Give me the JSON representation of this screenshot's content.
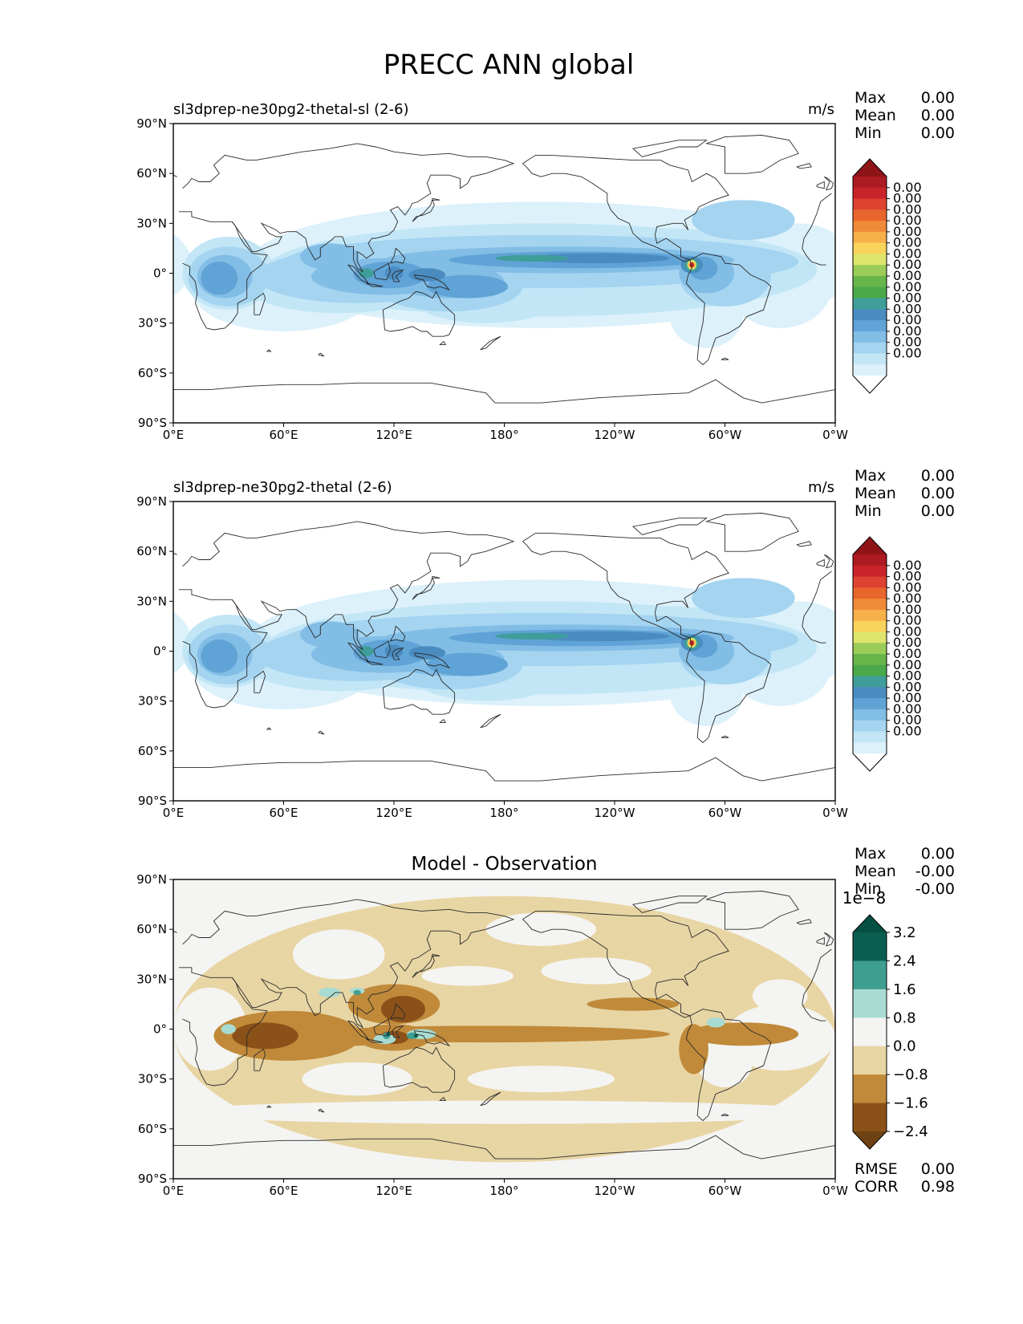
{
  "figure": {
    "title": "PRECC ANN global"
  },
  "chart_data": [
    {
      "type": "heatmap",
      "title": "sl3dprep-ne30pg2-thetal-sl (2-6)",
      "units": "m/s",
      "stats": [
        {
          "label": "Max",
          "value": "0.00"
        },
        {
          "label": "Mean",
          "value": "0.00"
        },
        {
          "label": "Min",
          "value": "0.00"
        }
      ],
      "x_ticks": [
        "0°E",
        "60°E",
        "120°E",
        "180°",
        "120°W",
        "60°W",
        "0°W"
      ],
      "y_ticks": [
        "90°N",
        "60°N",
        "30°N",
        "0°",
        "30°S",
        "60°S",
        "90°S"
      ],
      "xlim": [
        0,
        360
      ],
      "ylim": [
        -90,
        90
      ],
      "colorbar": {
        "colors": [
          "#ffffff",
          "#dcf1fa",
          "#c2e6f6",
          "#a4d4f0",
          "#82bde6",
          "#60a3d6",
          "#4b8cc0",
          "#3f9e9a",
          "#4aa84a",
          "#68b64a",
          "#9ccc58",
          "#dde56c",
          "#f9d35c",
          "#f7b04a",
          "#ef8a38",
          "#e8652c",
          "#de4230",
          "#c8242a",
          "#ac1a22",
          "#8f1418"
        ],
        "labels": [
          "0.00",
          "0.00",
          "0.00",
          "0.00",
          "0.00",
          "0.00",
          "0.00",
          "0.00",
          "0.00",
          "0.00",
          "0.00",
          "0.00",
          "0.00",
          "0.00",
          "0.00",
          "0.00"
        ]
      }
    },
    {
      "type": "heatmap",
      "title": "sl3dprep-ne30pg2-thetal (2-6)",
      "units": "m/s",
      "stats": [
        {
          "label": "Max",
          "value": "0.00"
        },
        {
          "label": "Mean",
          "value": "0.00"
        },
        {
          "label": "Min",
          "value": "0.00"
        }
      ],
      "x_ticks": [
        "0°E",
        "60°E",
        "120°E",
        "180°",
        "120°W",
        "60°W",
        "0°W"
      ],
      "y_ticks": [
        "90°N",
        "60°N",
        "30°N",
        "0°",
        "30°S",
        "60°S",
        "90°S"
      ],
      "xlim": [
        0,
        360
      ],
      "ylim": [
        -90,
        90
      ],
      "colorbar": {
        "colors": [
          "#ffffff",
          "#dcf1fa",
          "#c2e6f6",
          "#a4d4f0",
          "#82bde6",
          "#60a3d6",
          "#4b8cc0",
          "#3f9e9a",
          "#4aa84a",
          "#68b64a",
          "#9ccc58",
          "#dde56c",
          "#f9d35c",
          "#f7b04a",
          "#ef8a38",
          "#e8652c",
          "#de4230",
          "#c8242a",
          "#ac1a22",
          "#8f1418"
        ],
        "labels": [
          "0.00",
          "0.00",
          "0.00",
          "0.00",
          "0.00",
          "0.00",
          "0.00",
          "0.00",
          "0.00",
          "0.00",
          "0.00",
          "0.00",
          "0.00",
          "0.00",
          "0.00",
          "0.00"
        ]
      }
    },
    {
      "type": "heatmap",
      "title": "Model - Observation",
      "units": "",
      "stats": [
        {
          "label": "Max",
          "value": "0.00"
        },
        {
          "label": "Mean",
          "value": "-0.00"
        },
        {
          "label": "Min",
          "value": "-0.00"
        }
      ],
      "footer_stats": [
        {
          "label": "RMSE",
          "value": "0.00"
        },
        {
          "label": "CORR",
          "value": "0.98"
        }
      ],
      "x_ticks": [
        "0°E",
        "60°E",
        "120°E",
        "180°",
        "120°W",
        "60°W",
        "0°W"
      ],
      "y_ticks": [
        "90°N",
        "60°N",
        "30°N",
        "0°",
        "30°S",
        "60°S",
        "90°S"
      ],
      "xlim": [
        0,
        360
      ],
      "ylim": [
        -90,
        90
      ],
      "colorbar": {
        "scale_label": "1e−8",
        "colors": [
          "#6e4212",
          "#8a5218",
          "#c08a3a",
          "#e8d5a4",
          "#f4f4f2",
          "#a8dcd2",
          "#3f9e92",
          "#0a5e50",
          "#064f43"
        ],
        "labels": [
          "3.2",
          "2.4",
          "1.6",
          "0.8",
          "0.0",
          "−0.8",
          "−1.6",
          "−2.4"
        ]
      }
    }
  ]
}
